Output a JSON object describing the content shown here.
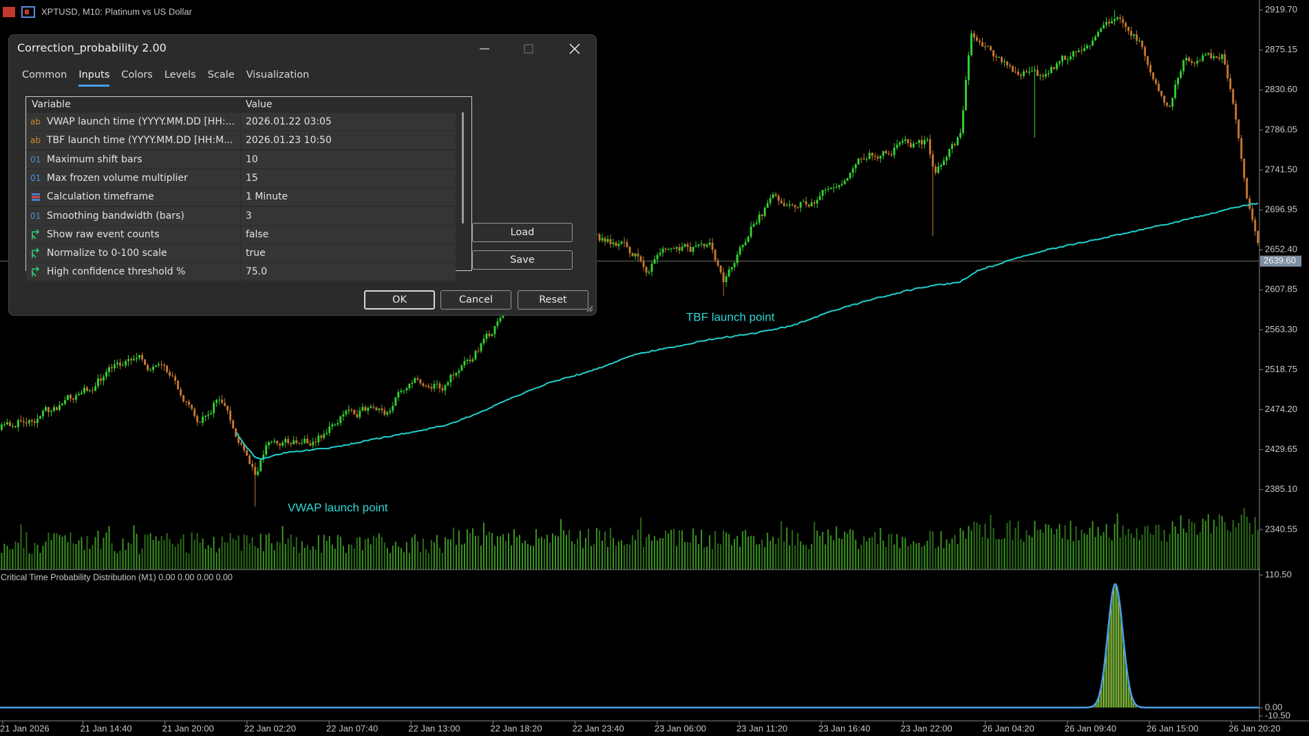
{
  "chart_window": {
    "title": "XPTUSD, M10:  Platinum vs US Dollar",
    "price_labels": [
      "2919.70",
      "2875.15",
      "2830.60",
      "2786.05",
      "2741.50",
      "2696.95",
      "2652.40",
      "2607.85",
      "2563.30",
      "2518.75",
      "2474.20",
      "2429.65",
      "2385.10",
      "2340.55"
    ],
    "current_price": "2639.60",
    "time_labels": [
      "21 Jan 2026",
      "21 Jan 14:40",
      "21 Jan 20:00",
      "22 Jan 02:20",
      "22 Jan 07:40",
      "22 Jan 13:00",
      "22 Jan 18:20",
      "22 Jan 23:40",
      "23 Jan 06:00",
      "23 Jan 11:20",
      "23 Jan 16:40",
      "23 Jan 22:00",
      "26 Jan 04:20",
      "26 Jan 09:40",
      "26 Jan 15:00",
      "26 Jan 20:20"
    ],
    "annotations": {
      "vwap": "VWAP launch point",
      "tbf": "TBF launch point"
    },
    "subwindow": {
      "title": "Critical Time Probability Distribution (M1) 0.00 0.00 0.00 0.00",
      "labels": [
        "110.50",
        "0.00",
        "-10.50"
      ]
    }
  },
  "dialog": {
    "title": "Correction_probability 2.00",
    "tabs": [
      "Common",
      "Inputs",
      "Colors",
      "Levels",
      "Scale",
      "Visualization"
    ],
    "table": {
      "headers": [
        "Variable",
        "Value"
      ],
      "rows": [
        {
          "icon": "ab",
          "variable": "VWAP launch time (YYYY.MM.DD [HH:...",
          "value": "2026.01.22 03:05"
        },
        {
          "icon": "ab",
          "variable": "TBF launch time (YYYY.MM.DD [HH:M...",
          "value": "2026.01.23 10:50"
        },
        {
          "icon": "01",
          "variable": "Maximum shift bars",
          "value": "10"
        },
        {
          "icon": "01",
          "variable": "Max frozen volume multiplier",
          "value": "15"
        },
        {
          "variable": "Calculation timeframe",
          "value": "1 Minute"
        },
        {
          "icon": "01",
          "variable": "Smoothing bandwidth (bars)",
          "value": "3"
        },
        {
          "variable": "Show raw event counts",
          "value": "false"
        },
        {
          "variable": "Normalize to 0-100 scale",
          "value": "true"
        },
        {
          "variable": "High confidence threshold %",
          "value": "75.0"
        }
      ]
    },
    "buttons": {
      "load": "Load",
      "save": "Save",
      "ok": "OK",
      "cancel": "Cancel",
      "reset": "Reset"
    }
  }
}
